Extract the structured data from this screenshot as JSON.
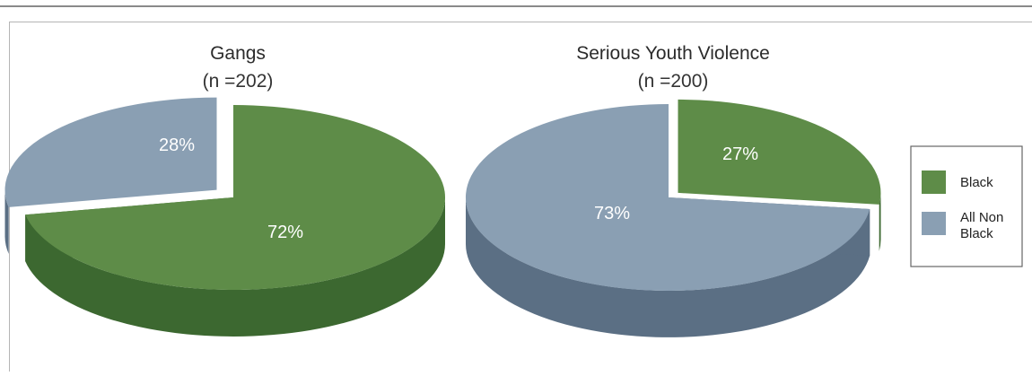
{
  "chart_data": [
    {
      "type": "pie",
      "title": "Gangs",
      "subtitle": "(n =202)",
      "categories": [
        "Black",
        "All Non Black"
      ],
      "values": [
        72,
        28
      ],
      "labels": [
        "72%",
        "28%"
      ],
      "exploded": "All Non Black"
    },
    {
      "type": "pie",
      "title": "Serious Youth Violence",
      "subtitle": "(n =200)",
      "categories": [
        "Black",
        "All Non Black"
      ],
      "values": [
        27,
        73
      ],
      "labels": [
        "27%",
        "73%"
      ],
      "exploded": "Black"
    }
  ],
  "legend": {
    "placement": "right",
    "items": [
      {
        "label_lines": [
          "Black"
        ],
        "color": "#5e8c48"
      },
      {
        "label_lines": [
          "All Non",
          "Black"
        ],
        "color": "#8a9fb3"
      }
    ]
  },
  "colors": {
    "black_top": "#5e8c48",
    "black_side": "#3c6830",
    "nonblack_top": "#8a9fb3",
    "nonblack_side": "#5b6f84"
  }
}
